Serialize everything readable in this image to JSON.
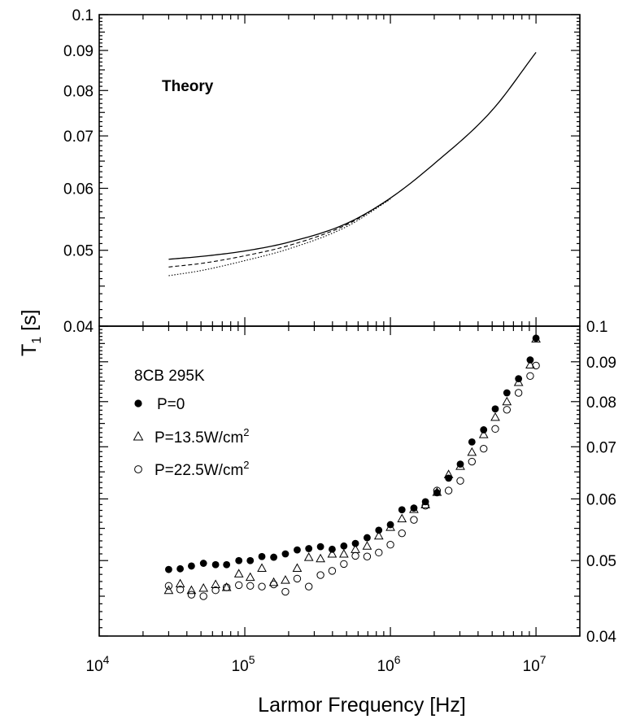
{
  "chart_data": [
    {
      "type": "line",
      "panel": "top",
      "title": "",
      "annotation": "Theory",
      "x_scale": "log",
      "y_scale": "log",
      "xlim": [
        10000,
        20000000
      ],
      "ylim": [
        0.04,
        0.1
      ],
      "y_tick_labels": [
        "0.04",
        "0.05",
        "0.06",
        "0.07",
        "0.08",
        "0.09",
        "0.1"
      ],
      "y_tick_values": [
        0.04,
        0.05,
        0.06,
        0.07,
        0.08,
        0.09,
        0.1
      ],
      "series": [
        {
          "style": "solid",
          "x": [
            30000,
            50000,
            100000,
            200000,
            500000,
            1000000,
            2000000,
            5000000,
            10000000
          ],
          "y": [
            0.0487,
            0.0491,
            0.0499,
            0.0512,
            0.0541,
            0.0583,
            0.0645,
            0.0755,
            0.0895
          ]
        },
        {
          "style": "dashed",
          "x": [
            30000,
            50000,
            100000,
            200000,
            500000,
            1000000
          ],
          "y": [
            0.0476,
            0.0481,
            0.0492,
            0.0507,
            0.0539,
            0.0582
          ]
        },
        {
          "style": "dotted",
          "x": [
            30000,
            50000,
            100000,
            200000,
            500000,
            1000000
          ],
          "y": [
            0.0464,
            0.0471,
            0.0485,
            0.0502,
            0.0536,
            0.0581
          ]
        }
      ]
    },
    {
      "type": "scatter",
      "panel": "bottom",
      "title": "",
      "annotation": "8CB 295K",
      "x_scale": "log",
      "y_scale": "log",
      "xlim": [
        10000,
        20000000
      ],
      "ylim": [
        0.04,
        0.1
      ],
      "xlabel": "Larmor Frequency [Hz]",
      "ylabel_main": "T",
      "ylabel_sub": "1",
      "ylabel_unit": " [s]",
      "x_tick_bases": [
        "10",
        "10",
        "10",
        "10"
      ],
      "x_tick_exps": [
        "4",
        "5",
        "6",
        "7"
      ],
      "x_tick_values": [
        10000,
        100000,
        1000000,
        10000000
      ],
      "y_tick_labels": [
        "0.04",
        "0.05",
        "0.06",
        "0.07",
        "0.08",
        "0.09",
        "0.1"
      ],
      "y_tick_values": [
        0.04,
        0.05,
        0.06,
        0.07,
        0.08,
        0.09,
        0.1
      ],
      "legend": [
        {
          "label": "P=0"
        },
        {
          "label": "P=13.5W/cm",
          "sup": "2"
        },
        {
          "label": "P=22.5W/cm",
          "sup": "2"
        }
      ],
      "series": [
        {
          "name": "P=0",
          "marker": "filled-circle",
          "x": [
            30000,
            36000,
            43000,
            52000,
            63000,
            75000,
            91000,
            109000,
            131000,
            158000,
            190000,
            229000,
            275000,
            331000,
            398000,
            479000,
            575000,
            692000,
            832000,
            1000000,
            1200000,
            1450000,
            1740000,
            2090000,
            2510000,
            3020000,
            3630000,
            4370000,
            5250000,
            6310000,
            7590000,
            9120000,
            10000000
          ],
          "y": [
            0.0487,
            0.0488,
            0.0492,
            0.0496,
            0.0494,
            0.0494,
            0.05,
            0.05,
            0.0506,
            0.0505,
            0.051,
            0.0516,
            0.0518,
            0.0521,
            0.0517,
            0.0522,
            0.0526,
            0.0535,
            0.0547,
            0.0556,
            0.0581,
            0.0584,
            0.0595,
            0.0611,
            0.0638,
            0.0665,
            0.071,
            0.0736,
            0.0783,
            0.0821,
            0.0856,
            0.0905,
            0.0965
          ]
        },
        {
          "name": "P=13.5W/cm2",
          "marker": "open-triangle",
          "x": [
            30000,
            36000,
            43000,
            52000,
            63000,
            75000,
            91000,
            109000,
            131000,
            158000,
            190000,
            229000,
            275000,
            331000,
            398000,
            479000,
            575000,
            692000,
            832000,
            1000000,
            1200000,
            1450000,
            1740000,
            2090000,
            2510000,
            3020000,
            3630000,
            4370000,
            5250000,
            6310000,
            7590000,
            9120000,
            10000000
          ],
          "y": [
            0.0458,
            0.0467,
            0.0458,
            0.0461,
            0.0466,
            0.0462,
            0.0481,
            0.0476,
            0.0489,
            0.0469,
            0.0472,
            0.0489,
            0.0505,
            0.0503,
            0.051,
            0.051,
            0.0517,
            0.0522,
            0.0538,
            0.0552,
            0.0566,
            0.0582,
            0.059,
            0.0612,
            0.0645,
            0.0661,
            0.0689,
            0.0726,
            0.0764,
            0.08,
            0.0847,
            0.0892,
            0.0963
          ]
        },
        {
          "name": "P=22.5W/cm2",
          "marker": "open-circle",
          "x": [
            30000,
            36000,
            43000,
            52000,
            63000,
            75000,
            91000,
            109000,
            131000,
            158000,
            190000,
            229000,
            275000,
            331000,
            398000,
            479000,
            575000,
            692000,
            832000,
            1000000,
            1200000,
            1450000,
            1740000,
            2090000,
            2510000,
            3020000,
            3630000,
            4370000,
            5250000,
            6310000,
            7590000,
            9120000,
            10000000
          ],
          "y": [
            0.0464,
            0.0459,
            0.0452,
            0.045,
            0.0458,
            0.0462,
            0.0465,
            0.0464,
            0.0463,
            0.0466,
            0.0456,
            0.0474,
            0.0463,
            0.0479,
            0.0485,
            0.0495,
            0.0507,
            0.0506,
            0.0512,
            0.0524,
            0.0542,
            0.0564,
            0.0588,
            0.0615,
            0.0615,
            0.0633,
            0.067,
            0.0696,
            0.0738,
            0.0781,
            0.0821,
            0.0863,
            0.089
          ]
        }
      ]
    }
  ]
}
